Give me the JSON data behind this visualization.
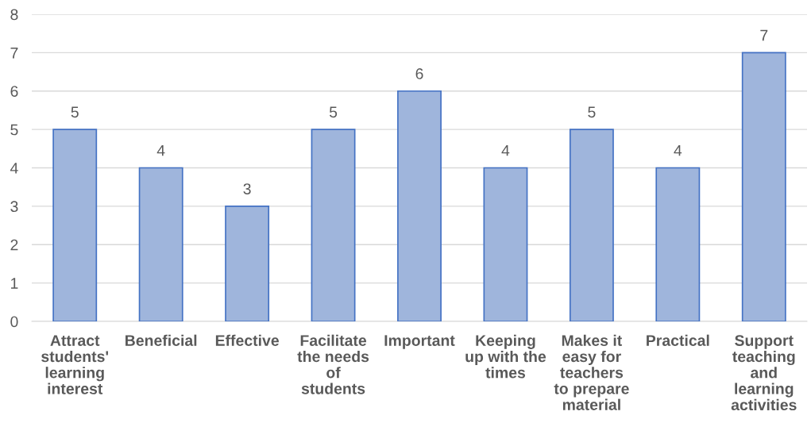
{
  "chart_data": {
    "type": "bar",
    "categories": [
      "Attract students' learning interest",
      "Beneficial",
      "Effective",
      "Facilitate the needs of students",
      "Important",
      "Keeping up with the times",
      "Makes it easy for teachers to prepare material",
      "Practical",
      "Support teaching and learning activities"
    ],
    "values": [
      5,
      4,
      3,
      5,
      6,
      4,
      5,
      4,
      7
    ],
    "color": "#9fb5dc",
    "ylim": [
      0,
      8
    ],
    "yticks": [
      0,
      1,
      2,
      3,
      4,
      5,
      6,
      7,
      8
    ],
    "grid": "y",
    "data_labels": true
  }
}
